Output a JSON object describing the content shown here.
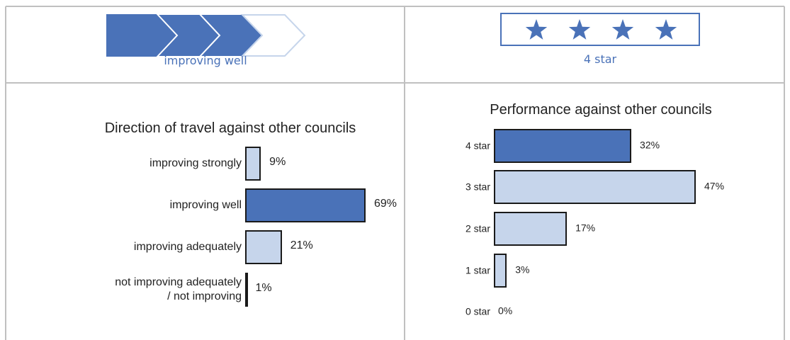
{
  "header": {
    "direction_label": "improving well",
    "rating_label": "4 star"
  },
  "chart_data": [
    {
      "type": "bar",
      "orientation": "horizontal",
      "title": "Direction of travel against other councils",
      "categories": [
        "improving strongly",
        "improving well",
        "improving adequately",
        "not improving adequately\n/ not improving"
      ],
      "values": [
        9,
        69,
        21,
        1
      ],
      "value_labels": [
        "9%",
        "69%",
        "21%",
        "1%"
      ],
      "colors": [
        "#c6d5eb",
        "#4a72b8",
        "#c6d5eb",
        "#c6d5eb"
      ]
    },
    {
      "type": "bar",
      "orientation": "horizontal",
      "title": "Performance against other councils",
      "categories": [
        "4 star",
        "3 star",
        "2 star",
        "1 star",
        "0 star"
      ],
      "values": [
        32,
        47,
        17,
        3,
        0
      ],
      "value_labels": [
        "32%",
        "47%",
        "17%",
        "3%",
        "0%"
      ],
      "colors": [
        "#4a72b8",
        "#c6d5eb",
        "#c6d5eb",
        "#c6d5eb",
        "#c6d5eb"
      ]
    }
  ]
}
